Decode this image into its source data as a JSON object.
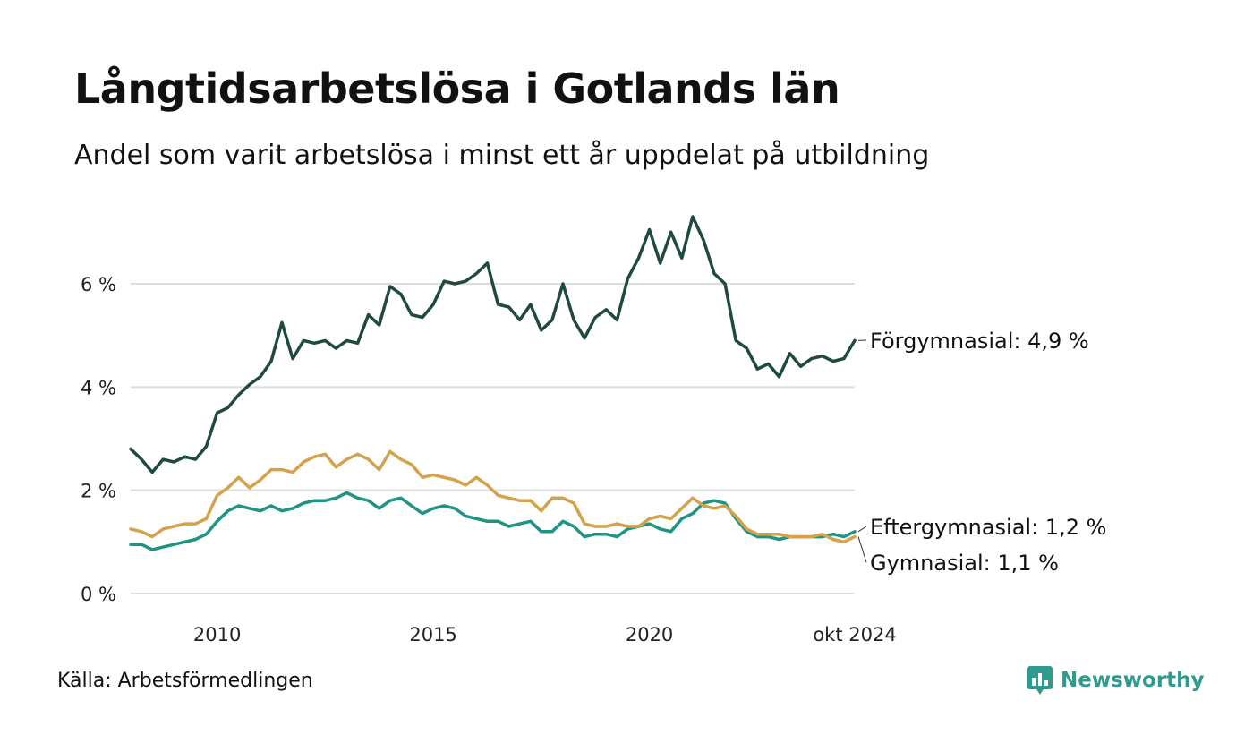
{
  "header": {
    "title": "Långtidsarbetslösa i Gotlands län",
    "subtitle": "Andel som varit arbetslösa i minst ett år uppdelat på utbildning"
  },
  "footer": {
    "source": "Källa: Arbetsförmedlingen",
    "brand": "Newsworthy",
    "brand_color": "#2e9b8e",
    "brand_icon": "bar-chart-speech-bubble-icon"
  },
  "chart_data": {
    "type": "line",
    "ylim": [
      0,
      7.5
    ],
    "y_ticks": [
      {
        "value": 0,
        "label": "0 %"
      },
      {
        "value": 2,
        "label": "2 %"
      },
      {
        "value": 4,
        "label": "4 %"
      },
      {
        "value": 6,
        "label": "6 %"
      }
    ],
    "x_range": [
      "2008-01",
      "2024-10"
    ],
    "x_ticks": [
      {
        "value": "2010-01",
        "label": "2010"
      },
      {
        "value": "2015-01",
        "label": "2015"
      },
      {
        "value": "2020-01",
        "label": "2020"
      },
      {
        "value": "2024-10",
        "label": "okt 2024"
      }
    ],
    "grid": true,
    "series": [
      {
        "name": "Förgymnasial",
        "end_label": "Förgymnasial: 4,9 %",
        "color": "#1f4a42",
        "points": [
          [
            "2008-01",
            2.8
          ],
          [
            "2008-04",
            2.6
          ],
          [
            "2008-07",
            2.35
          ],
          [
            "2008-10",
            2.6
          ],
          [
            "2009-01",
            2.55
          ],
          [
            "2009-04",
            2.65
          ],
          [
            "2009-07",
            2.6
          ],
          [
            "2009-10",
            2.85
          ],
          [
            "2010-01",
            3.5
          ],
          [
            "2010-04",
            3.6
          ],
          [
            "2010-07",
            3.85
          ],
          [
            "2010-10",
            4.05
          ],
          [
            "2011-01",
            4.2
          ],
          [
            "2011-04",
            4.5
          ],
          [
            "2011-07",
            5.25
          ],
          [
            "2011-10",
            4.55
          ],
          [
            "2012-01",
            4.9
          ],
          [
            "2012-04",
            4.85
          ],
          [
            "2012-07",
            4.9
          ],
          [
            "2012-10",
            4.75
          ],
          [
            "2013-01",
            4.9
          ],
          [
            "2013-04",
            4.85
          ],
          [
            "2013-07",
            5.4
          ],
          [
            "2013-10",
            5.2
          ],
          [
            "2014-01",
            5.95
          ],
          [
            "2014-04",
            5.8
          ],
          [
            "2014-07",
            5.4
          ],
          [
            "2014-10",
            5.35
          ],
          [
            "2015-01",
            5.6
          ],
          [
            "2015-04",
            6.05
          ],
          [
            "2015-07",
            6.0
          ],
          [
            "2015-10",
            6.05
          ],
          [
            "2016-01",
            6.2
          ],
          [
            "2016-04",
            6.4
          ],
          [
            "2016-07",
            5.6
          ],
          [
            "2016-10",
            5.55
          ],
          [
            "2017-01",
            5.3
          ],
          [
            "2017-04",
            5.6
          ],
          [
            "2017-07",
            5.1
          ],
          [
            "2017-10",
            5.3
          ],
          [
            "2018-01",
            6.0
          ],
          [
            "2018-04",
            5.3
          ],
          [
            "2018-07",
            4.95
          ],
          [
            "2018-10",
            5.35
          ],
          [
            "2019-01",
            5.5
          ],
          [
            "2019-04",
            5.3
          ],
          [
            "2019-07",
            6.1
          ],
          [
            "2019-10",
            6.5
          ],
          [
            "2020-01",
            7.05
          ],
          [
            "2020-04",
            6.4
          ],
          [
            "2020-07",
            7.0
          ],
          [
            "2020-10",
            6.5
          ],
          [
            "2021-01",
            7.3
          ],
          [
            "2021-04",
            6.85
          ],
          [
            "2021-07",
            6.2
          ],
          [
            "2021-10",
            6.0
          ],
          [
            "2022-01",
            4.9
          ],
          [
            "2022-04",
            4.75
          ],
          [
            "2022-07",
            4.35
          ],
          [
            "2022-10",
            4.45
          ],
          [
            "2023-01",
            4.2
          ],
          [
            "2023-04",
            4.65
          ],
          [
            "2023-07",
            4.4
          ],
          [
            "2023-10",
            4.55
          ],
          [
            "2024-01",
            4.6
          ],
          [
            "2024-04",
            4.5
          ],
          [
            "2024-07",
            4.55
          ],
          [
            "2024-10",
            4.9
          ]
        ]
      },
      {
        "name": "Eftergymnasial",
        "end_label": "Eftergymnasial: 1,2 %",
        "color": "#1f9484",
        "points": [
          [
            "2008-01",
            0.95
          ],
          [
            "2008-04",
            0.95
          ],
          [
            "2008-07",
            0.85
          ],
          [
            "2008-10",
            0.9
          ],
          [
            "2009-01",
            0.95
          ],
          [
            "2009-04",
            1.0
          ],
          [
            "2009-07",
            1.05
          ],
          [
            "2009-10",
            1.15
          ],
          [
            "2010-01",
            1.4
          ],
          [
            "2010-04",
            1.6
          ],
          [
            "2010-07",
            1.7
          ],
          [
            "2010-10",
            1.65
          ],
          [
            "2011-01",
            1.6
          ],
          [
            "2011-04",
            1.7
          ],
          [
            "2011-07",
            1.6
          ],
          [
            "2011-10",
            1.65
          ],
          [
            "2012-01",
            1.75
          ],
          [
            "2012-04",
            1.8
          ],
          [
            "2012-07",
            1.8
          ],
          [
            "2012-10",
            1.85
          ],
          [
            "2013-01",
            1.95
          ],
          [
            "2013-04",
            1.85
          ],
          [
            "2013-07",
            1.8
          ],
          [
            "2013-10",
            1.65
          ],
          [
            "2014-01",
            1.8
          ],
          [
            "2014-04",
            1.85
          ],
          [
            "2014-07",
            1.7
          ],
          [
            "2014-10",
            1.55
          ],
          [
            "2015-01",
            1.65
          ],
          [
            "2015-04",
            1.7
          ],
          [
            "2015-07",
            1.65
          ],
          [
            "2015-10",
            1.5
          ],
          [
            "2016-01",
            1.45
          ],
          [
            "2016-04",
            1.4
          ],
          [
            "2016-07",
            1.4
          ],
          [
            "2016-10",
            1.3
          ],
          [
            "2017-01",
            1.35
          ],
          [
            "2017-04",
            1.4
          ],
          [
            "2017-07",
            1.2
          ],
          [
            "2017-10",
            1.2
          ],
          [
            "2018-01",
            1.4
          ],
          [
            "2018-04",
            1.3
          ],
          [
            "2018-07",
            1.1
          ],
          [
            "2018-10",
            1.15
          ],
          [
            "2019-01",
            1.15
          ],
          [
            "2019-04",
            1.1
          ],
          [
            "2019-07",
            1.25
          ],
          [
            "2019-10",
            1.3
          ],
          [
            "2020-01",
            1.35
          ],
          [
            "2020-04",
            1.25
          ],
          [
            "2020-07",
            1.2
          ],
          [
            "2020-10",
            1.45
          ],
          [
            "2021-01",
            1.55
          ],
          [
            "2021-04",
            1.75
          ],
          [
            "2021-07",
            1.8
          ],
          [
            "2021-10",
            1.75
          ],
          [
            "2022-01",
            1.45
          ],
          [
            "2022-04",
            1.2
          ],
          [
            "2022-07",
            1.1
          ],
          [
            "2022-10",
            1.1
          ],
          [
            "2023-01",
            1.05
          ],
          [
            "2023-04",
            1.1
          ],
          [
            "2023-07",
            1.1
          ],
          [
            "2023-10",
            1.1
          ],
          [
            "2024-01",
            1.1
          ],
          [
            "2024-04",
            1.15
          ],
          [
            "2024-07",
            1.1
          ],
          [
            "2024-10",
            1.2
          ]
        ]
      },
      {
        "name": "Gymnasial",
        "end_label": "Gymnasial: 1,1 %",
        "color": "#d4a24c",
        "points": [
          [
            "2008-01",
            1.25
          ],
          [
            "2008-04",
            1.2
          ],
          [
            "2008-07",
            1.1
          ],
          [
            "2008-10",
            1.25
          ],
          [
            "2009-01",
            1.3
          ],
          [
            "2009-04",
            1.35
          ],
          [
            "2009-07",
            1.35
          ],
          [
            "2009-10",
            1.45
          ],
          [
            "2010-01",
            1.9
          ],
          [
            "2010-04",
            2.05
          ],
          [
            "2010-07",
            2.25
          ],
          [
            "2010-10",
            2.05
          ],
          [
            "2011-01",
            2.2
          ],
          [
            "2011-04",
            2.4
          ],
          [
            "2011-07",
            2.4
          ],
          [
            "2011-10",
            2.35
          ],
          [
            "2012-01",
            2.55
          ],
          [
            "2012-04",
            2.65
          ],
          [
            "2012-07",
            2.7
          ],
          [
            "2012-10",
            2.45
          ],
          [
            "2013-01",
            2.6
          ],
          [
            "2013-04",
            2.7
          ],
          [
            "2013-07",
            2.6
          ],
          [
            "2013-10",
            2.4
          ],
          [
            "2014-01",
            2.75
          ],
          [
            "2014-04",
            2.6
          ],
          [
            "2014-07",
            2.5
          ],
          [
            "2014-10",
            2.25
          ],
          [
            "2015-01",
            2.3
          ],
          [
            "2015-04",
            2.25
          ],
          [
            "2015-07",
            2.2
          ],
          [
            "2015-10",
            2.1
          ],
          [
            "2016-01",
            2.25
          ],
          [
            "2016-04",
            2.1
          ],
          [
            "2016-07",
            1.9
          ],
          [
            "2016-10",
            1.85
          ],
          [
            "2017-01",
            1.8
          ],
          [
            "2017-04",
            1.8
          ],
          [
            "2017-07",
            1.6
          ],
          [
            "2017-10",
            1.85
          ],
          [
            "2018-01",
            1.85
          ],
          [
            "2018-04",
            1.75
          ],
          [
            "2018-07",
            1.35
          ],
          [
            "2018-10",
            1.3
          ],
          [
            "2019-01",
            1.3
          ],
          [
            "2019-04",
            1.35
          ],
          [
            "2019-07",
            1.3
          ],
          [
            "2019-10",
            1.3
          ],
          [
            "2020-01",
            1.45
          ],
          [
            "2020-04",
            1.5
          ],
          [
            "2020-07",
            1.45
          ],
          [
            "2020-10",
            1.65
          ],
          [
            "2021-01",
            1.85
          ],
          [
            "2021-04",
            1.7
          ],
          [
            "2021-07",
            1.65
          ],
          [
            "2021-10",
            1.7
          ],
          [
            "2022-01",
            1.5
          ],
          [
            "2022-04",
            1.25
          ],
          [
            "2022-07",
            1.15
          ],
          [
            "2022-10",
            1.15
          ],
          [
            "2023-01",
            1.15
          ],
          [
            "2023-04",
            1.1
          ],
          [
            "2023-07",
            1.1
          ],
          [
            "2023-10",
            1.1
          ],
          [
            "2024-01",
            1.15
          ],
          [
            "2024-04",
            1.05
          ],
          [
            "2024-07",
            1.0
          ],
          [
            "2024-10",
            1.1
          ]
        ]
      }
    ]
  }
}
